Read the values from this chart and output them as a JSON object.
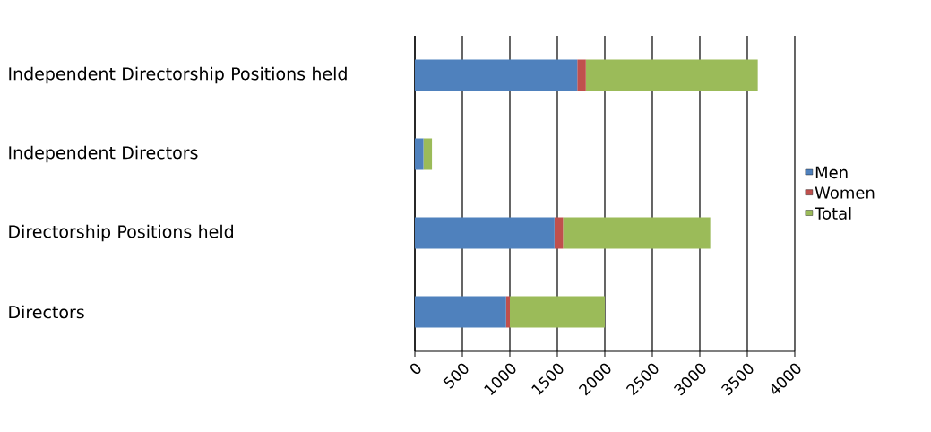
{
  "chart_data": {
    "type": "bar",
    "orientation": "horizontal",
    "stacked": true,
    "categories": [
      "Independent Directorship Positions held",
      "Independent Directors",
      "Directorship Positions held",
      "Directors"
    ],
    "series": [
      {
        "name": "Men",
        "color": "#4f81bd",
        "values": [
          1710,
          90,
          1470,
          960
        ]
      },
      {
        "name": "Women",
        "color": "#c0504d",
        "values": [
          90,
          0,
          90,
          40
        ]
      },
      {
        "name": "Total",
        "color": "#9bbb59",
        "values": [
          1810,
          90,
          1550,
          1000
        ]
      }
    ],
    "xlim": [
      0,
      4000
    ],
    "xticks": [
      0,
      500,
      1000,
      1500,
      2000,
      2500,
      3000,
      3500,
      4000
    ],
    "grid": "x",
    "legend": "right"
  }
}
